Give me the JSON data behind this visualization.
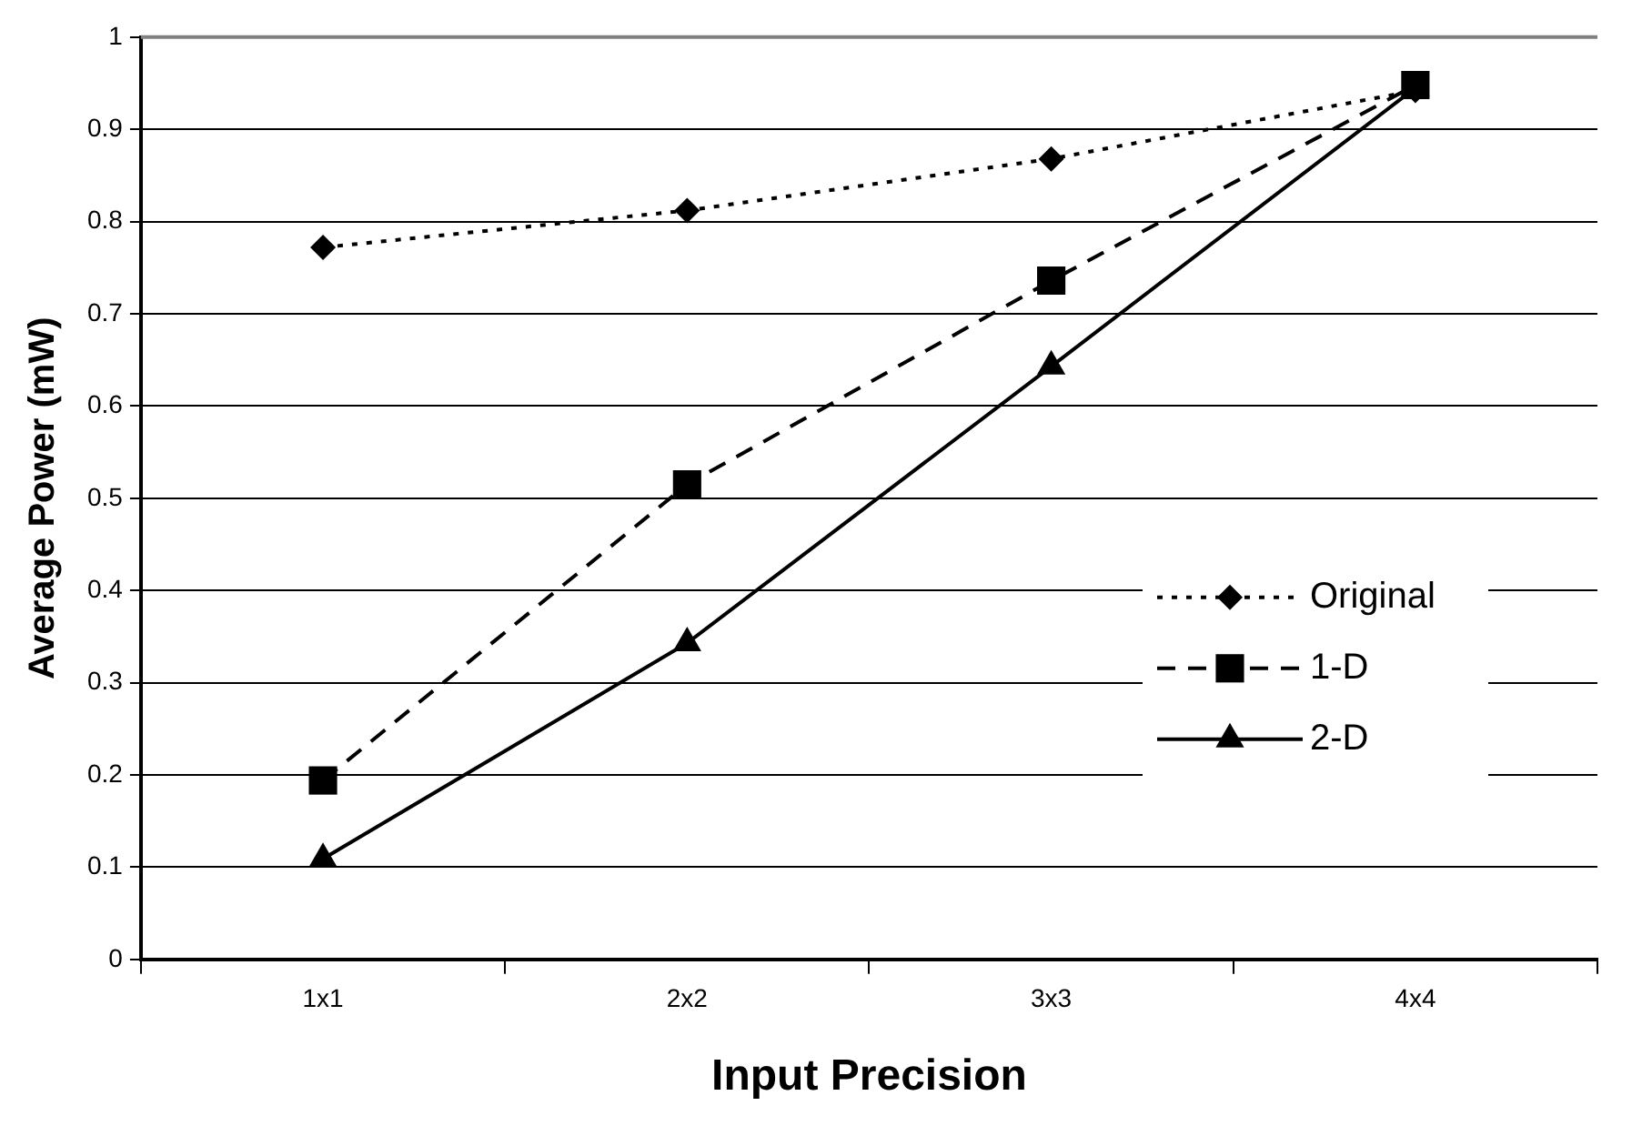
{
  "chart_data": {
    "type": "line",
    "xlabel": "Input Precision",
    "ylabel": "Average Power (mW)",
    "categories": [
      "1x1",
      "2x2",
      "3x3",
      "4x4"
    ],
    "series": [
      {
        "name": "Original",
        "color": "#000000",
        "values": [
          0.772,
          0.812,
          0.868,
          0.942
        ],
        "marker": "diamond",
        "line_style": "dotted"
      },
      {
        "name": "1-D",
        "color": "#000000",
        "values": [
          0.194,
          0.515,
          0.736,
          0.948
        ],
        "marker": "square",
        "line_style": "dashed"
      },
      {
        "name": "2-D",
        "color": "#000000",
        "values": [
          0.109,
          0.343,
          0.643,
          0.945
        ],
        "marker": "triangle",
        "line_style": "solid"
      }
    ],
    "ylim": [
      0,
      1
    ],
    "yticks": [
      0,
      0.1,
      0.2,
      0.3,
      0.4,
      0.5,
      0.6,
      0.7,
      0.8,
      0.9,
      1
    ],
    "grid": "y",
    "legend": "right"
  }
}
